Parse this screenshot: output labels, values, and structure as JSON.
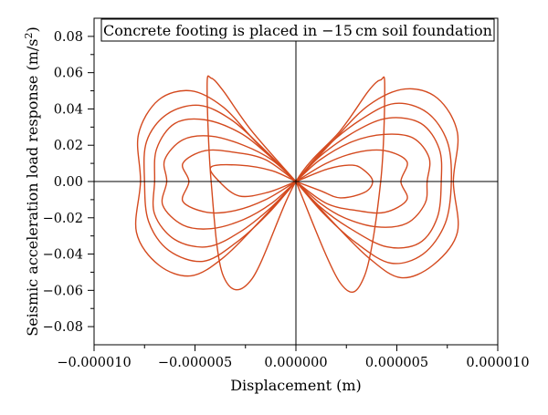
{
  "chart_data": {
    "type": "line",
    "title": "Concrete footing is placed in −15 cm soil foundation",
    "xlabel": "Displacement (m)",
    "ylabel_main": "Seismic acceleration load response (m/s",
    "ylabel_sup": "2",
    "ylabel_tail": ")",
    "xlim": [
      -1e-05,
      1e-05
    ],
    "ylim": [
      -0.09,
      0.09
    ],
    "x_ticks": [
      -1e-05,
      -5e-06,
      0.0,
      5e-06,
      1e-05
    ],
    "x_tick_labels": [
      "−0.000010",
      "−0.000005",
      "0.000000",
      "0.000005",
      "0.000010"
    ],
    "y_ticks": [
      0.08,
      0.06,
      0.04,
      0.02,
      0.0,
      -0.02,
      -0.04,
      -0.06,
      -0.08
    ],
    "y_tick_labels": [
      "0.08",
      "0.06",
      "0.04",
      "0.02",
      "0.00",
      "−0.02",
      "−0.04",
      "−0.06",
      "−0.08"
    ],
    "grid": false,
    "zero_lines": true,
    "series_color": "#d44a1f",
    "series": [
      {
        "x": [
          0.0,
          -1.2e-06,
          -2.8e-06,
          -4.2e-06,
          -3.8e-06,
          -2.8e-06,
          -1.4e-06,
          0.0,
          1.6e-06,
          2.8e-06,
          3.4e-06,
          3.8e-06,
          3.4e-06,
          2.2e-06,
          1.2e-06,
          0.0
        ],
        "y": [
          0.0,
          0.006,
          0.009,
          0.008,
          0.0,
          -0.008,
          -0.006,
          0.0,
          0.007,
          0.009,
          0.006,
          0.0,
          -0.006,
          -0.009,
          -0.005,
          0.0
        ]
      },
      {
        "x": [
          0.0,
          -1.5e-06,
          -3e-06,
          -4.5e-06,
          -5.6e-06,
          -5.3e-06,
          -5.6e-06,
          -4.4e-06,
          -3e-06,
          -1.5e-06,
          0.0,
          1.5e-06,
          3e-06,
          4.4e-06,
          5.5e-06,
          5.2e-06,
          5.5e-06,
          4.4e-06,
          3e-06,
          1.5e-06,
          0.0
        ],
        "y": [
          0.0,
          0.012,
          0.016,
          0.017,
          0.01,
          0.0,
          -0.011,
          -0.017,
          -0.016,
          -0.01,
          0.0,
          0.01,
          0.016,
          0.017,
          0.011,
          0.0,
          -0.01,
          -0.017,
          -0.016,
          -0.012,
          0.0
        ]
      },
      {
        "x": [
          0.0,
          -1.2e-06,
          -2.6e-06,
          -4.2e-06,
          -5.6e-06,
          -6.5e-06,
          -6.4e-06,
          -6.6e-06,
          -5.6e-06,
          -4.2e-06,
          -2.6e-06,
          -1.2e-06,
          0.0,
          1.2e-06,
          2.8e-06,
          4.4e-06,
          5.8e-06,
          6.6e-06,
          6.5e-06,
          6.4e-06,
          5.5e-06,
          4e-06,
          2.4e-06,
          1.2e-06,
          0.0
        ],
        "y": [
          0.0,
          0.012,
          0.02,
          0.025,
          0.023,
          0.012,
          0.0,
          -0.013,
          -0.024,
          -0.026,
          -0.021,
          -0.012,
          0.0,
          0.012,
          0.022,
          0.026,
          0.024,
          0.013,
          0.0,
          -0.012,
          -0.023,
          -0.025,
          -0.02,
          -0.012,
          0.0
        ]
      },
      {
        "x": [
          0.0,
          -1.4e-06,
          -2.8e-06,
          -4.5e-06,
          -6e-06,
          -6.9e-06,
          -7e-06,
          -7e-06,
          -6e-06,
          -4.4e-06,
          -2.8e-06,
          -1.2e-06,
          0.0,
          1.2e-06,
          3e-06,
          4.6e-06,
          6.2e-06,
          7.1e-06,
          7.2e-06,
          7e-06,
          6.1e-06,
          4.5e-06,
          2.7e-06,
          1.2e-06,
          0.0
        ],
        "y": [
          0.0,
          0.015,
          0.027,
          0.034,
          0.032,
          0.018,
          0.0,
          -0.018,
          -0.032,
          -0.036,
          -0.028,
          -0.014,
          0.0,
          0.014,
          0.028,
          0.035,
          0.032,
          0.018,
          0.0,
          -0.02,
          -0.034,
          -0.036,
          -0.026,
          -0.014,
          0.0
        ]
      },
      {
        "x": [
          0.0,
          -1.6e-06,
          -3.2e-06,
          -4.8e-06,
          -6.4e-06,
          -7.4e-06,
          -7.5e-06,
          -7.3e-06,
          -6.3e-06,
          -4.6e-06,
          -3e-06,
          -1.4e-06,
          0.0,
          1.4e-06,
          3.2e-06,
          4.9e-06,
          6.5e-06,
          7.5e-06,
          7.7e-06,
          7.4e-06,
          6.3e-06,
          4.7e-06,
          3e-06,
          1.4e-06,
          0.0
        ],
        "y": [
          0.0,
          0.018,
          0.034,
          0.042,
          0.037,
          0.022,
          0.0,
          -0.022,
          -0.038,
          -0.044,
          -0.034,
          -0.018,
          0.0,
          0.018,
          0.034,
          0.043,
          0.038,
          0.022,
          0.0,
          -0.023,
          -0.04,
          -0.045,
          -0.034,
          -0.018,
          0.0
        ]
      },
      {
        "x": [
          0.0,
          -2e-06,
          -3.6e-06,
          -5.2e-06,
          -6.8e-06,
          -7.8e-06,
          -7.7e-06,
          -7.9e-06,
          -6.8e-06,
          -5.2e-06,
          -3.6e-06,
          -1.8e-06,
          0.0,
          1.8e-06,
          3.6e-06,
          5.4e-06,
          7e-06,
          8e-06,
          7.8e-06,
          8e-06,
          6.8e-06,
          5.2e-06,
          3.6e-06,
          1.8e-06,
          0.0
        ],
        "y": [
          0.0,
          0.022,
          0.041,
          0.05,
          0.045,
          0.026,
          0.0,
          -0.028,
          -0.046,
          -0.052,
          -0.042,
          -0.022,
          0.0,
          0.022,
          0.042,
          0.051,
          0.046,
          0.027,
          0.0,
          -0.028,
          -0.046,
          -0.053,
          -0.042,
          -0.022,
          0.0
        ]
      },
      {
        "x": [
          0.0,
          -2.2e-06,
          -3.6e-06,
          -4.2e-06,
          -4.4e-06,
          -4.2e-06,
          -3.6e-06,
          -2.2e-06,
          0.0,
          2.2e-06,
          3.6e-06,
          4.2e-06,
          4.4e-06,
          4.2e-06,
          3.4e-06,
          2.2e-06,
          0.0
        ],
        "y": [
          0.0,
          0.028,
          0.05,
          0.057,
          0.052,
          0.0,
          -0.052,
          -0.054,
          0.0,
          0.028,
          0.05,
          0.056,
          0.052,
          0.0,
          -0.052,
          -0.056,
          0.0
        ]
      }
    ]
  }
}
